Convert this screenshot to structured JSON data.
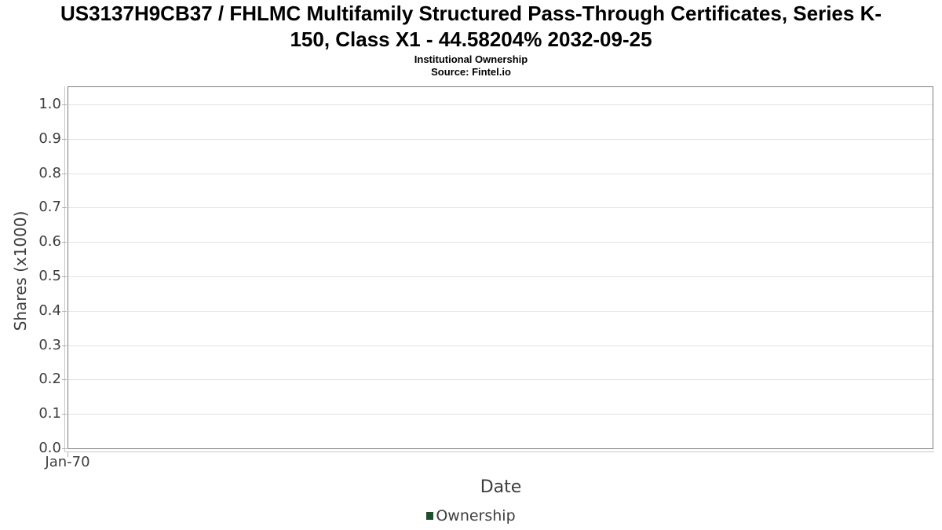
{
  "chart_data": {
    "type": "line",
    "title": "US3137H9CB37 / FHLMC Multifamily Structured Pass-Through Certificates, Series K-150, Class X1 - 44.58204% 2032-09-25",
    "title_lines": [
      "US3137H9CB37 / FHLMC Multifamily Structured Pass-Through Certificates, Series K-",
      "150, Class X1 - 44.58204% 2032-09-25"
    ],
    "subtitle": "Institutional Ownership",
    "source": "Source: Fintel.io",
    "xlabel": "Date",
    "ylabel": "Shares (x1000)",
    "x_tick_labels": [
      "Jan-70"
    ],
    "y_ticks": [
      "0.0",
      "0.1",
      "0.2",
      "0.3",
      "0.4",
      "0.5",
      "0.6",
      "0.7",
      "0.8",
      "0.9",
      "1.0"
    ],
    "ylim": [
      0,
      1.05
    ],
    "grid": true,
    "legend": {
      "position": "bottom-center",
      "entries": [
        {
          "label": "Ownership",
          "color": "#1e4e2c"
        }
      ]
    },
    "series": [
      {
        "name": "Ownership",
        "color": "#1e4e2c",
        "x": [],
        "values": []
      }
    ],
    "colors": {
      "plot_border": "#7d7d7d",
      "gridline": "#e3e3e3",
      "axis_line": "#c8c8c8",
      "tick_mark": "#b0b0b0",
      "axis_text": "#3d3d3d",
      "title_text": "#000000"
    }
  }
}
